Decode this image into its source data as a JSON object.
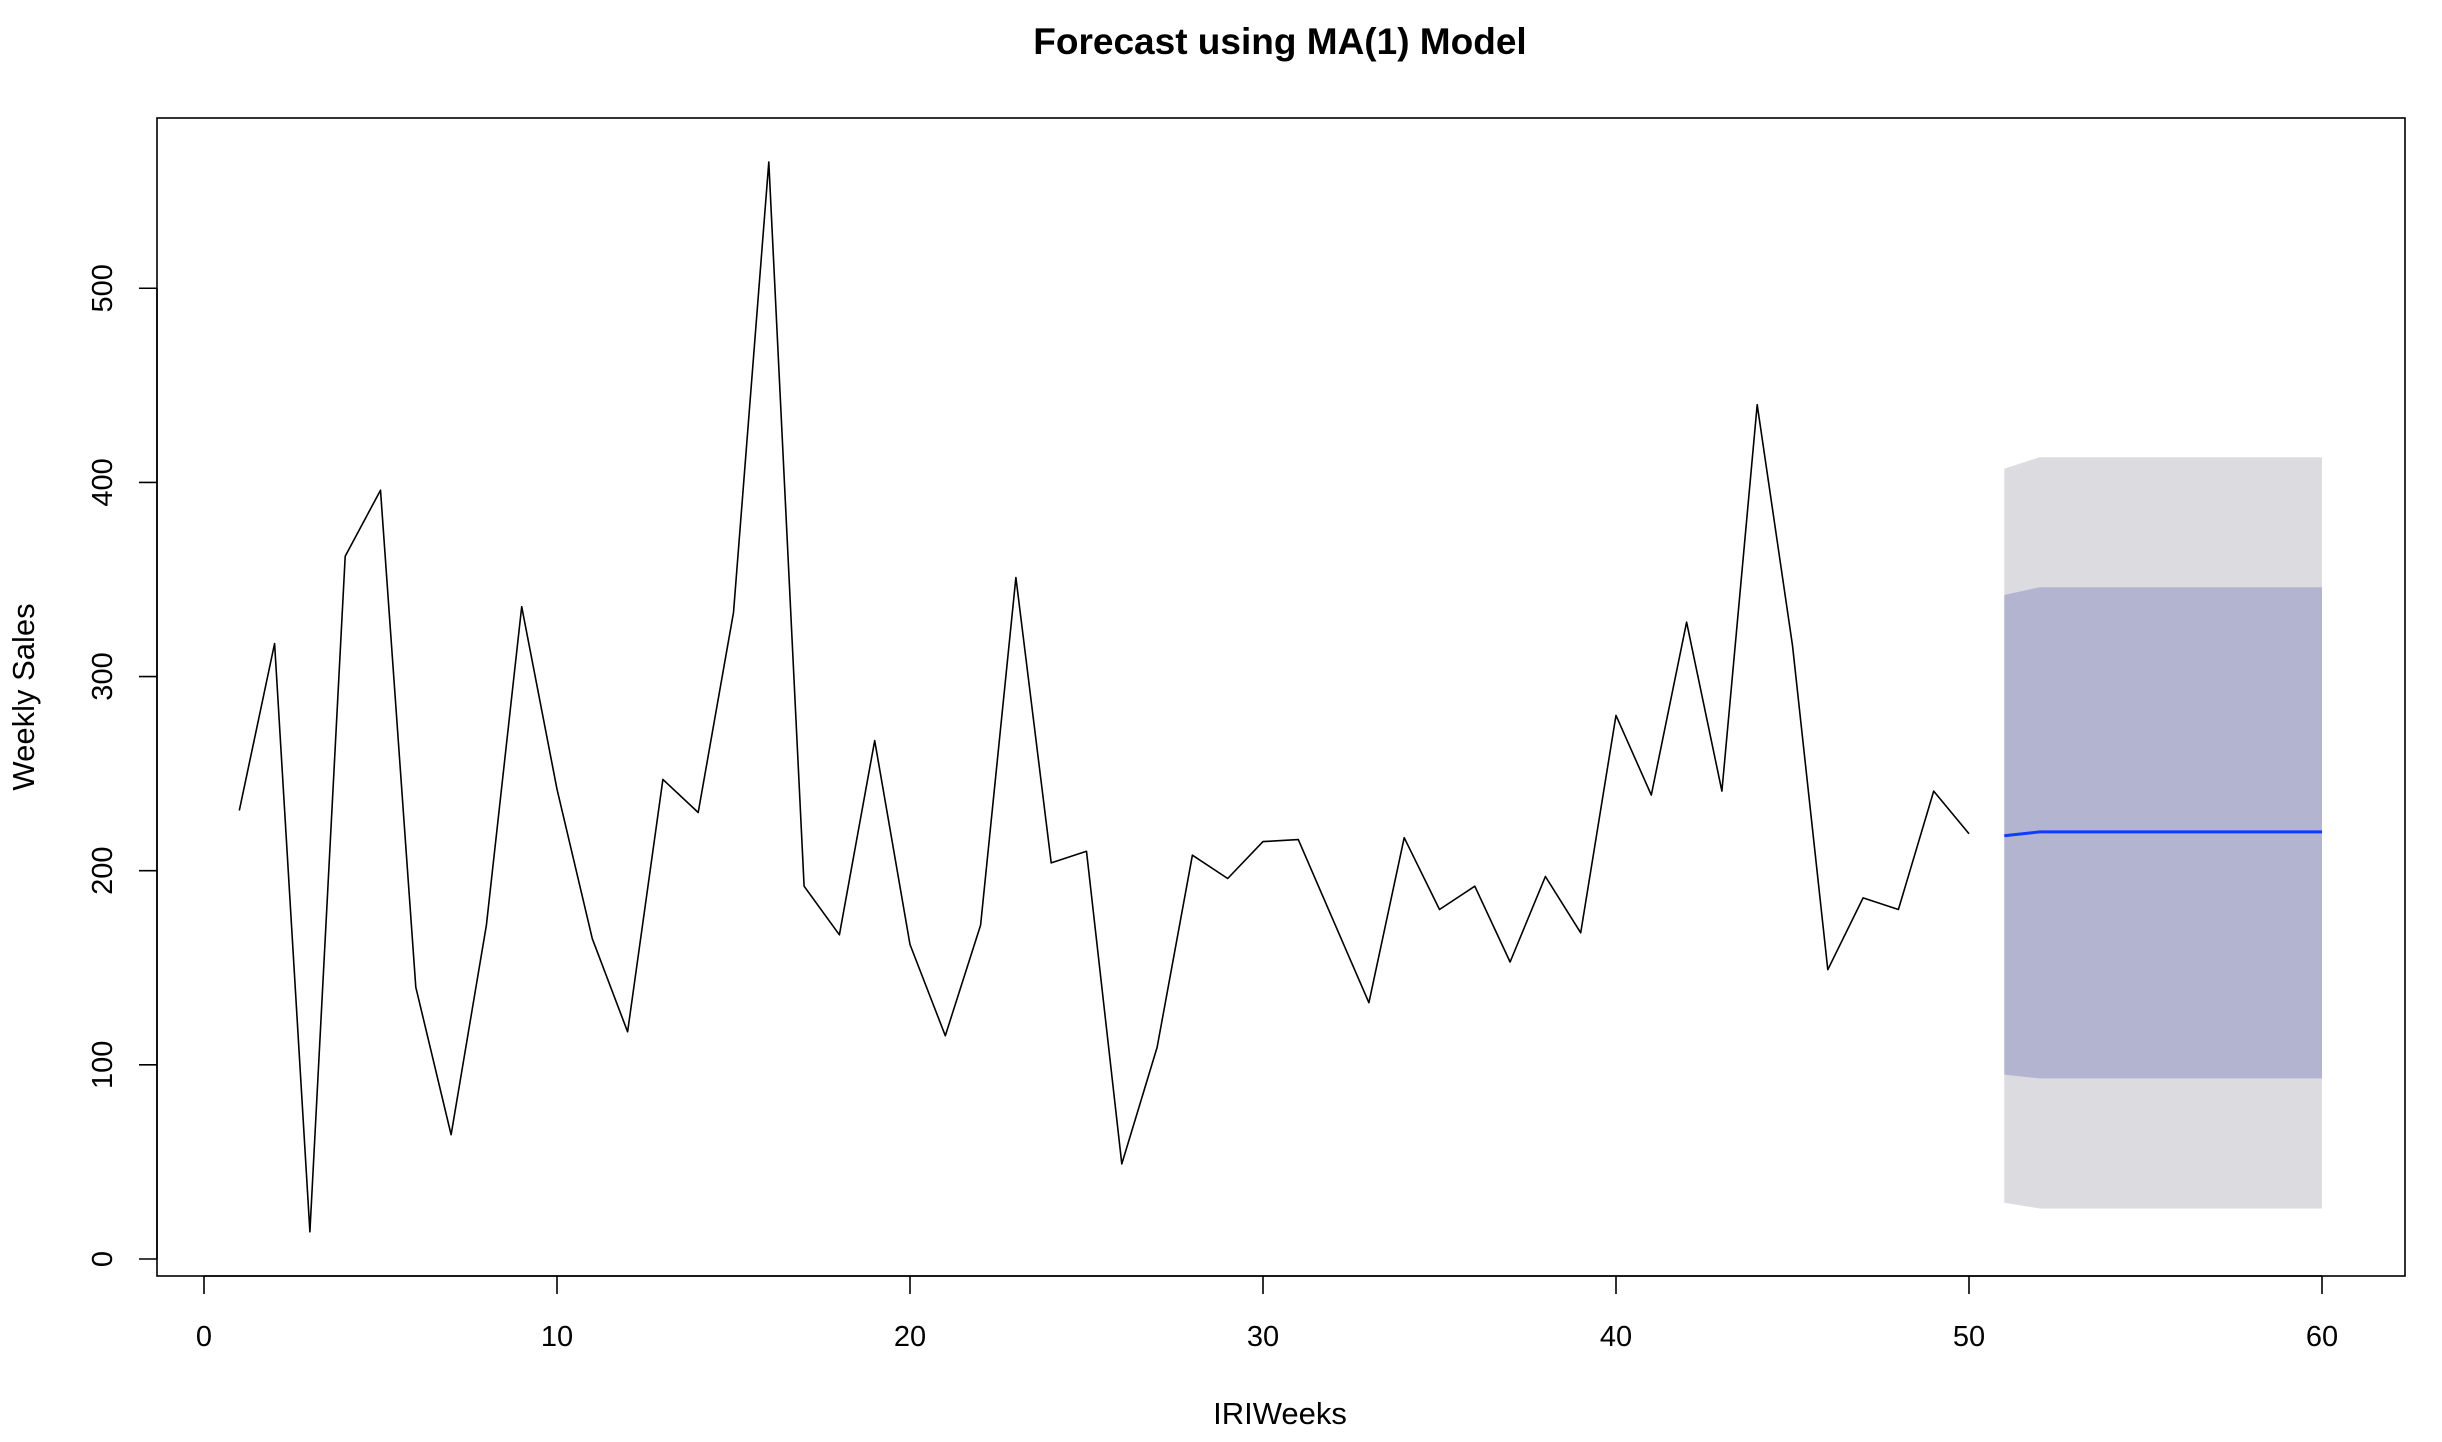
{
  "chart_data": {
    "type": "line",
    "title": "Forecast using MA(1) Model",
    "xlabel": "IRIWeeks",
    "ylabel": "Weekly Sales",
    "xlim": [
      0,
      60
    ],
    "ylim": [
      0,
      580
    ],
    "x_ticks": [
      0,
      10,
      20,
      30,
      40,
      50,
      60
    ],
    "y_ticks": [
      0,
      100,
      200,
      300,
      400,
      500
    ],
    "grid": false,
    "series": [
      {
        "x": [
          1,
          2,
          3,
          4,
          5,
          6,
          7,
          8,
          9,
          10,
          11,
          12,
          13,
          14,
          15,
          16,
          17,
          18,
          19,
          20,
          21,
          22,
          23,
          24,
          25,
          26,
          27,
          28,
          29,
          30,
          31,
          32,
          33,
          34,
          35,
          36,
          37,
          38,
          39,
          40,
          41,
          42,
          43,
          44,
          45,
          46,
          47,
          48,
          49,
          50
        ],
        "values": [
          231,
          317,
          14,
          362,
          396,
          140,
          64,
          172,
          336,
          242,
          165,
          117,
          247,
          230,
          333,
          565,
          192,
          167,
          267,
          162,
          115,
          172,
          351,
          204,
          210,
          49,
          109,
          208,
          196,
          215,
          216,
          174,
          132,
          217,
          180,
          192,
          153,
          197,
          168,
          280,
          239,
          328,
          241,
          440,
          316,
          149,
          186,
          180,
          241,
          219
        ],
        "color": "#000000"
      }
    ],
    "forecast": {
      "x": [
        51,
        52,
        53,
        54,
        55,
        56,
        57,
        58,
        59,
        60
      ],
      "mean": [
        218,
        220,
        220,
        220,
        220,
        220,
        220,
        220,
        220,
        220
      ],
      "lo80": [
        95,
        93,
        93,
        93,
        93,
        93,
        93,
        93,
        93,
        93
      ],
      "hi80": [
        342,
        346,
        346,
        346,
        346,
        346,
        346,
        346,
        346,
        346
      ],
      "lo95": [
        29,
        26,
        26,
        26,
        26,
        26,
        26,
        26,
        26,
        26
      ],
      "hi95": [
        407,
        413,
        413,
        413,
        413,
        413,
        413,
        413,
        413,
        413
      ],
      "mean_color": "#0f3cff",
      "band80_color": "#b3b5d0",
      "band95_color": "#dbdbe0"
    }
  }
}
